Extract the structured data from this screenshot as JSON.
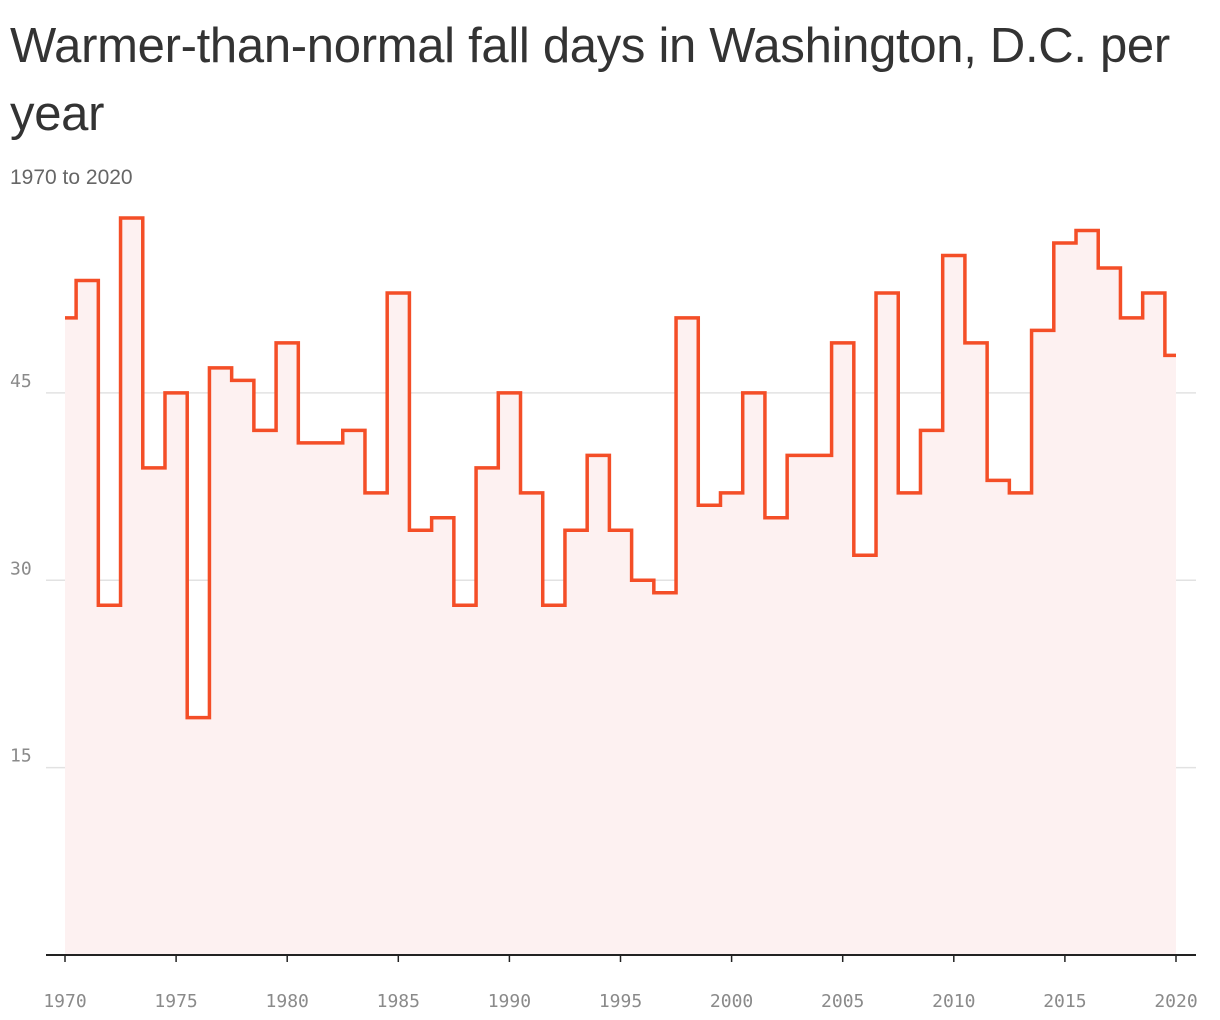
{
  "chart_data": {
    "type": "line",
    "title": "Warmer-than-normal fall days in Washington, D.C. per year",
    "subtitle": "1970 to 2020",
    "xlabel": "",
    "ylabel": "",
    "step": true,
    "area_fill": true,
    "line_color": "#f44e27",
    "fill_color": "#fdf1f1",
    "grid": true,
    "xlim": [
      1970,
      2020
    ],
    "ylim": [
      0,
      59
    ],
    "x_ticks": [
      1970,
      1975,
      1980,
      1985,
      1990,
      1995,
      2000,
      2005,
      2010,
      2015,
      2020
    ],
    "y_ticks": [
      15,
      30,
      45
    ],
    "x": [
      1970,
      1971,
      1972,
      1973,
      1974,
      1975,
      1976,
      1977,
      1978,
      1979,
      1980,
      1981,
      1982,
      1983,
      1984,
      1985,
      1986,
      1987,
      1988,
      1989,
      1990,
      1991,
      1992,
      1993,
      1994,
      1995,
      1996,
      1997,
      1998,
      1999,
      2000,
      2001,
      2002,
      2003,
      2004,
      2005,
      2006,
      2007,
      2008,
      2009,
      2010,
      2011,
      2012,
      2013,
      2014,
      2015,
      2016,
      2017,
      2018,
      2019,
      2020
    ],
    "values": [
      51,
      54,
      28,
      59,
      39,
      45,
      19,
      47,
      46,
      42,
      49,
      41,
      41,
      42,
      37,
      53,
      34,
      35,
      28,
      39,
      45,
      37,
      28,
      34,
      40,
      34,
      30,
      29,
      51,
      36,
      37,
      45,
      35,
      40,
      40,
      49,
      32,
      53,
      37,
      42,
      56,
      49,
      38,
      37,
      50,
      57,
      58,
      55,
      51,
      53,
      48
    ]
  }
}
